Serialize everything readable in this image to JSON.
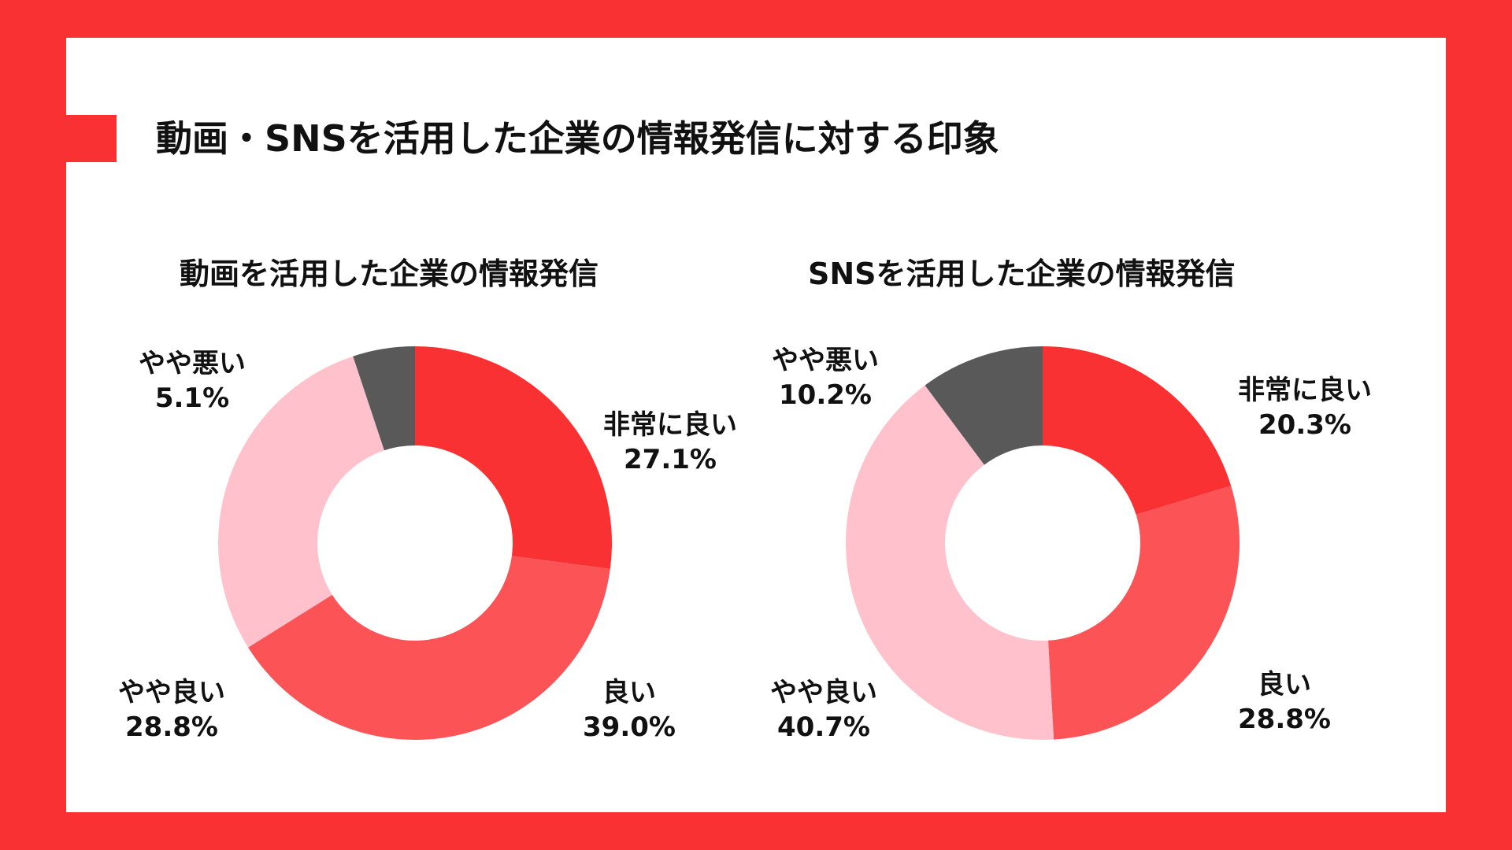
{
  "title": "動画・SNSを活用した企業の情報発信に対する印象",
  "colors": {
    "background": "#f93132",
    "very_good": "#f93132",
    "good": "#fc5356",
    "somewhat_good": "#ffc1cc",
    "somewhat_bad": "#595959"
  },
  "chart_data": [
    {
      "type": "pie",
      "title": "動画を活用した企業の情報発信",
      "slices": [
        {
          "label": "非常に良い",
          "value": 27.1,
          "display": "27.1%",
          "color": "#f93132"
        },
        {
          "label": "良い",
          "value": 39.0,
          "display": "39.0%",
          "color": "#fc5356"
        },
        {
          "label": "やや良い",
          "value": 28.8,
          "display": "28.8%",
          "color": "#ffc1cc"
        },
        {
          "label": "やや悪い",
          "value": 5.1,
          "display": "5.1%",
          "color": "#595959"
        }
      ]
    },
    {
      "type": "pie",
      "title": "SNSを活用した企業の情報発信",
      "slices": [
        {
          "label": "非常に良い",
          "value": 20.3,
          "display": "20.3%",
          "color": "#f93132"
        },
        {
          "label": "良い",
          "value": 28.8,
          "display": "28.8%",
          "color": "#fc5356"
        },
        {
          "label": "やや良い",
          "value": 40.7,
          "display": "40.7%",
          "color": "#ffc1cc"
        },
        {
          "label": "やや悪い",
          "value": 10.2,
          "display": "10.2%",
          "color": "#595959"
        }
      ]
    }
  ]
}
